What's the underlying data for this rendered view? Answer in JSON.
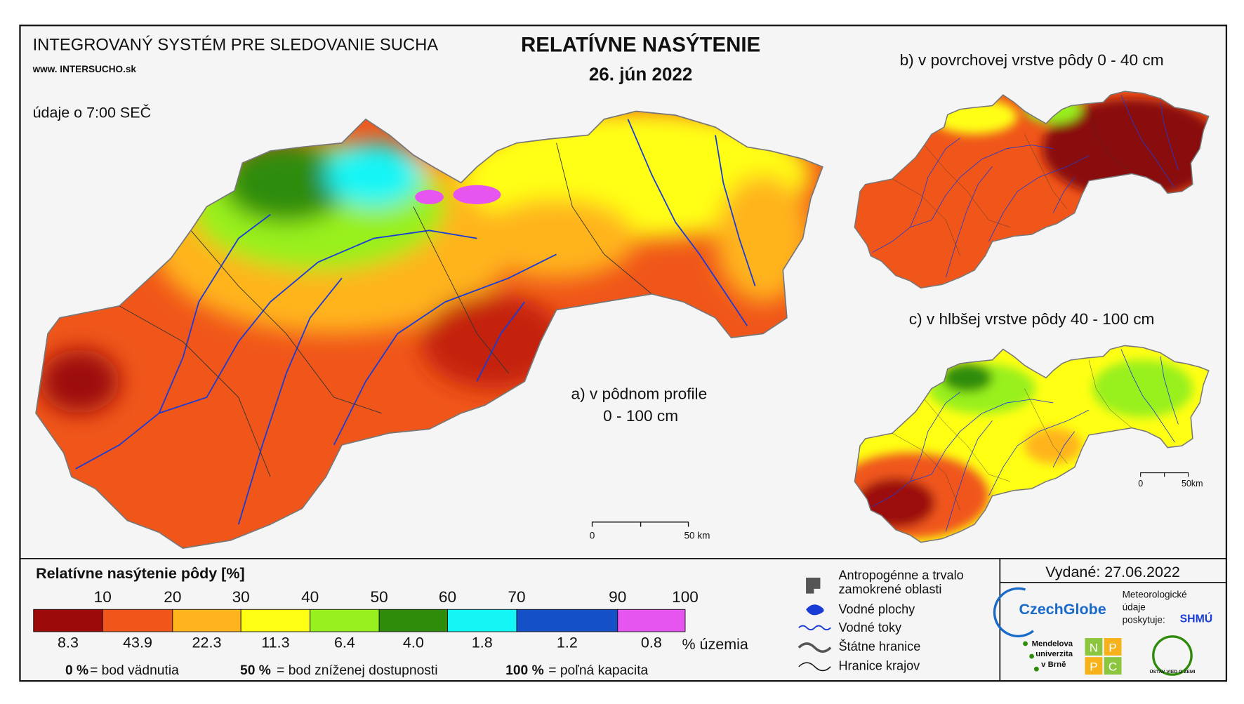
{
  "header": {
    "system_title": "INTEGROVANÝ SYSTÉM PRE SLEDOVANIE SUCHA",
    "website": "www. INTERSUCHO.sk",
    "time_note": "údaje o 7:00 SEČ",
    "title": "RELATÍVNE NASÝTENIE",
    "date": "26. jún 2022"
  },
  "maps": {
    "a_label": [
      "a) v pôdnom profile",
      "0 - 100 cm"
    ],
    "b_label": "b) v povrchovej vrstve pôdy 0 - 40 cm",
    "c_label": "c) v hlbšej vrstve pôdy 40 - 100 cm",
    "scale_a": [
      "0",
      "50 km"
    ],
    "scale_c": [
      "0",
      "50km"
    ]
  },
  "legend": {
    "title": "Relatívne nasýtenie pôdy [%]",
    "breaks": [
      10,
      20,
      30,
      40,
      50,
      60,
      70,
      90,
      100
    ],
    "classes": [
      {
        "color": "#9c0a0a",
        "share": 8.3
      },
      {
        "color": "#f0561a",
        "share": 43.9
      },
      {
        "color": "#ffb41e",
        "share": 22.3
      },
      {
        "color": "#ffff14",
        "share": 11.3
      },
      {
        "color": "#98f01e",
        "share": 6.4
      },
      {
        "color": "#2e8c0a",
        "share": 4.0
      },
      {
        "color": "#14f5f5",
        "share": 1.8
      },
      {
        "color": "#1450c8",
        "share": 1.2
      },
      {
        "color": "#e655f0",
        "share": 0.8
      }
    ],
    "share_labels": [
      "8.3",
      "43.9",
      "22.3",
      "11.3",
      "6.4",
      "4.0",
      "1.8",
      "1.2",
      "0.8"
    ],
    "unit": "% územia",
    "notes": [
      {
        "key": "0 %",
        "text": "= bod vädnutia"
      },
      {
        "key": "50 %",
        "text": "= bod zníženej dostupnosti"
      },
      {
        "key": "100 %",
        "text": "= poľná kapacita"
      }
    ]
  },
  "symbols": [
    "Antropogénne a trvalo",
    "zamokrené oblasti",
    "Vodné plochy",
    "Vodné toky",
    "Štátne hranice",
    "Hranice krajov"
  ],
  "issued": "Vydané: 27.06.2022",
  "logos": {
    "czechglobe": "CzechGlobe",
    "meteo": [
      "Meteorologické",
      "údaje",
      "poskytuje:"
    ],
    "shmu": "SHMÚ",
    "mendel": [
      "Mendelova",
      "univerzita",
      "v Brně"
    ],
    "nppc": [
      "N",
      "P",
      "P",
      "C"
    ],
    "uvz": "ÚSTAV VIED O ZEMI"
  }
}
